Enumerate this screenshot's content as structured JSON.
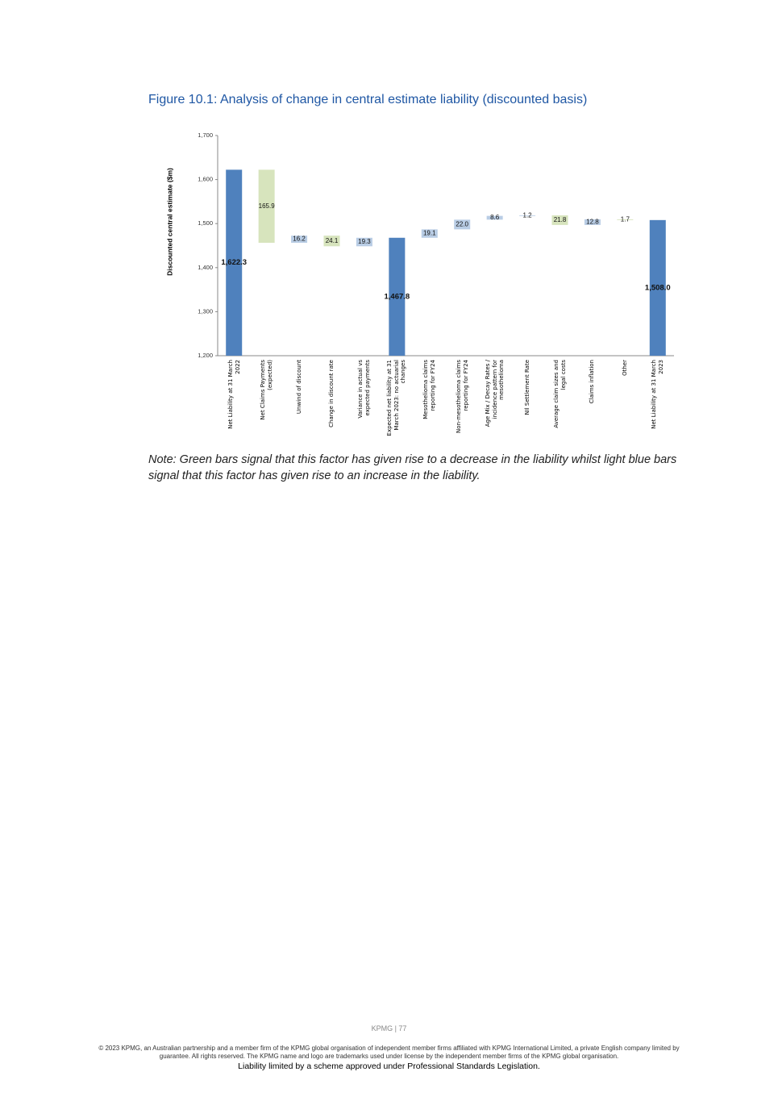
{
  "figure_title": "Figure 10.1: Analysis of change in central estimate liability (discounted basis)",
  "chart_data": {
    "type": "waterfall",
    "y_label": "Discounted central estimate ($m)",
    "categories": [
      "Net Liability at 31 March 2022",
      "Net Claims Payments (expected)",
      "Unwind of discount",
      "Change in discount rate",
      "Variance in actual vs expected payments",
      "Expected net liability at 31 March 2023: no actuarial changes",
      "Mesothelioma claims reporting for FY24",
      "Non-mesothelioma claims reporting for FY24",
      "Age Mix / Decay Rates / incidence pattern for mesothelioma",
      "NIl Settlement Rate",
      "Average claim sizes and legal costs",
      "Claims inflation",
      "Other",
      "Net Liability at 31 March 2023"
    ],
    "values": [
      1622.3,
      -165.9,
      16.2,
      -24.1,
      19.3,
      1467.8,
      19.1,
      22.0,
      8.6,
      1.2,
      -21.8,
      12.8,
      -1.7,
      1508.0
    ],
    "value_labels": [
      "1,622.3",
      "165.9",
      "16.2",
      "24.1",
      "19.3",
      "1,467.8",
      "19.1",
      "22.0",
      "8.6",
      "1.2",
      "21.8",
      "12.8",
      "1.7",
      "1,508.0"
    ],
    "measure": [
      "total",
      "relative",
      "relative",
      "relative",
      "relative",
      "total",
      "relative",
      "relative",
      "relative",
      "relative",
      "relative",
      "relative",
      "relative",
      "total"
    ],
    "colors": {
      "total": "#4f81bd",
      "increase": "#b9cde5",
      "decrease": "#d7e4bd"
    },
    "ylim": [
      1200,
      1700
    ],
    "yticks": [
      {
        "value": 1200,
        "label": "1,200"
      },
      {
        "value": 1300,
        "label": "1,300"
      },
      {
        "value": 1400,
        "label": "1,400"
      },
      {
        "value": 1500,
        "label": "1,500"
      },
      {
        "value": 1600,
        "label": "1,600"
      },
      {
        "value": 1700,
        "label": "1,700"
      }
    ]
  },
  "note": "Note: Green bars signal that this factor has given rise to a decrease in the liability whilst light blue bars signal that this factor has given rise to an increase in the liability.",
  "footer": {
    "page": "KPMG | 77",
    "copyright": "© 2023 KPMG, an Australian partnership and a member firm of the KPMG global organisation of independent member firms affiliated with KPMG International Limited, a private English company limited by guarantee. All rights reserved. The KPMG name and logo are trademarks used under license by the independent member firms of the KPMG global organisation.",
    "liability": "Liability limited by a scheme approved under Professional Standards Legislation."
  }
}
